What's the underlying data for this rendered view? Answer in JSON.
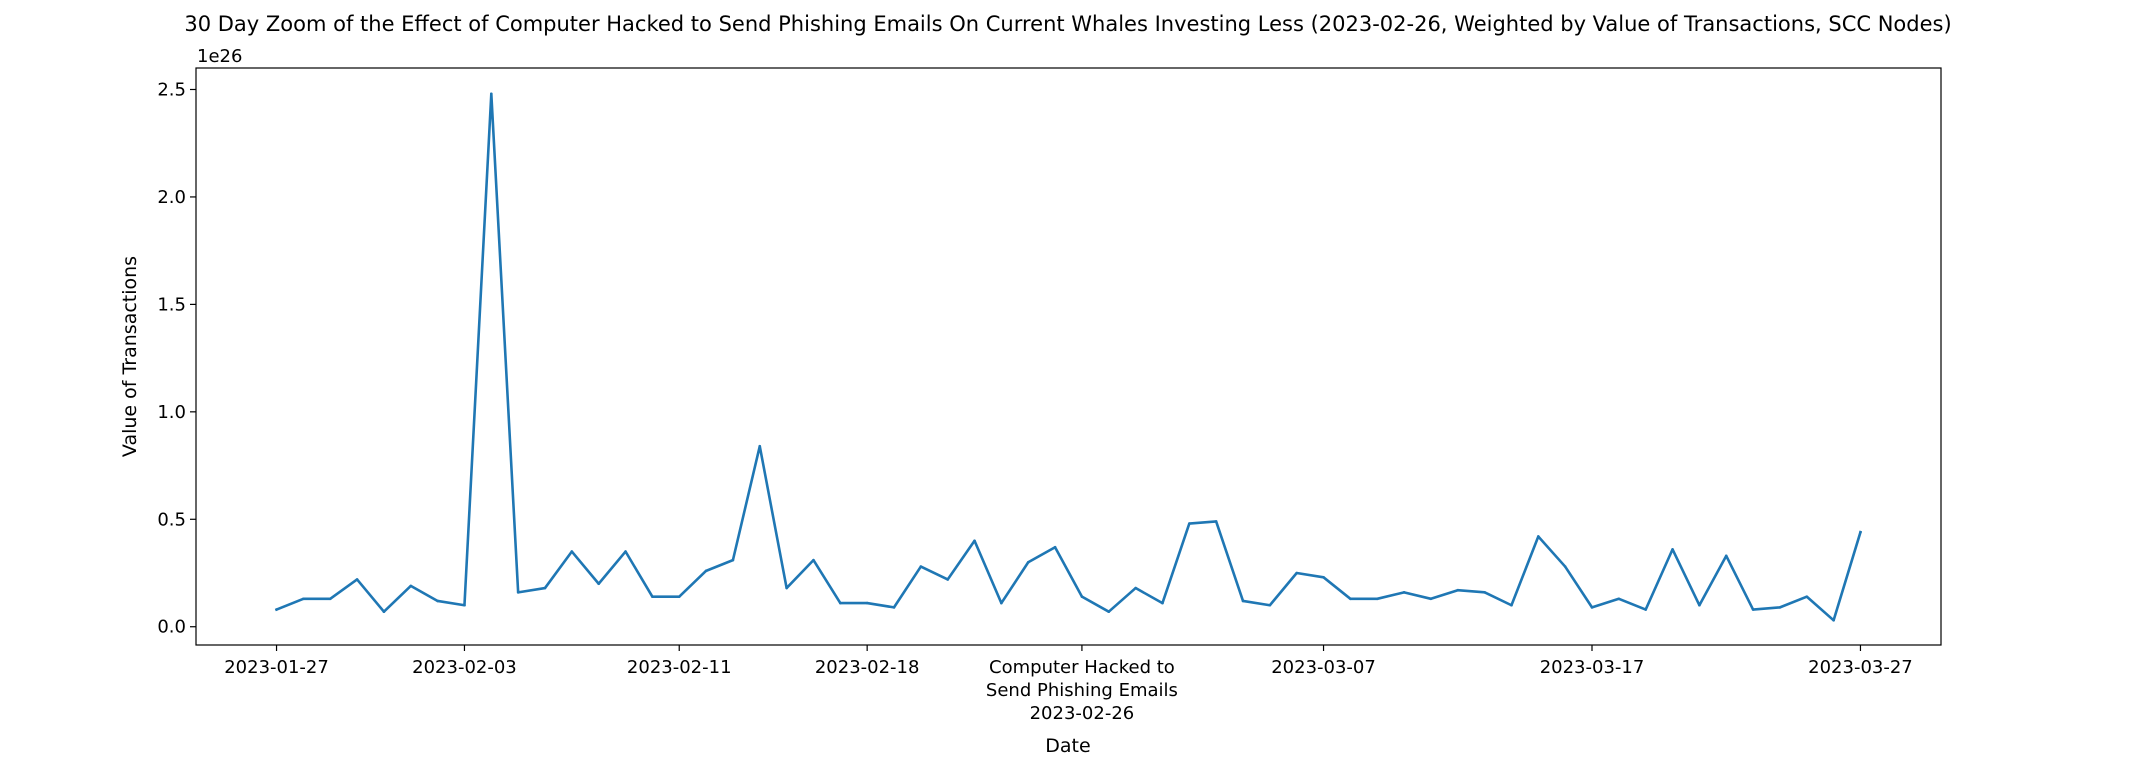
{
  "chart_data": {
    "type": "line",
    "title": "30 Day Zoom of the Effect of Computer Hacked to Send Phishing Emails On Current Whales Investing Less (2023-02-26, Weighted by Value of Transactions, SCC Nodes)",
    "xlabel": "Date",
    "ylabel": "Value of Transactions",
    "y_offset_label": "1e26",
    "y_multiplier": 1e+26,
    "xlim": [
      "2023-01-24",
      "2023-03-30"
    ],
    "ylim": [
      -0.085,
      2.6
    ],
    "yticks": [
      0.0,
      0.5,
      1.0,
      1.5,
      2.0,
      2.5
    ],
    "ytick_labels": [
      "0.0",
      "0.5",
      "1.0",
      "1.5",
      "2.0",
      "2.5"
    ],
    "xticks": [
      "2023-01-27",
      "2023-02-03",
      "2023-02-11",
      "2023-02-18",
      "2023-02-26",
      "2023-03-07",
      "2023-03-17",
      "2023-03-27"
    ],
    "xtick_labels": [
      [
        "2023-01-27"
      ],
      [
        "2023-02-03"
      ],
      [
        "2023-02-11"
      ],
      [
        "2023-02-18"
      ],
      [
        "Computer Hacked to",
        "Send Phishing Emails",
        "2023-02-26"
      ],
      [
        "2023-03-07"
      ],
      [
        "2023-03-17"
      ],
      [
        "2023-03-27"
      ]
    ],
    "grid": false,
    "legend": false,
    "series": [
      {
        "color": "#1f77b4",
        "x": [
          "2023-01-27",
          "2023-01-28",
          "2023-01-29",
          "2023-01-30",
          "2023-01-31",
          "2023-02-01",
          "2023-02-02",
          "2023-02-03",
          "2023-02-04",
          "2023-02-05",
          "2023-02-06",
          "2023-02-07",
          "2023-02-08",
          "2023-02-09",
          "2023-02-10",
          "2023-02-11",
          "2023-02-12",
          "2023-02-13",
          "2023-02-14",
          "2023-02-15",
          "2023-02-16",
          "2023-02-17",
          "2023-02-18",
          "2023-02-19",
          "2023-02-20",
          "2023-02-21",
          "2023-02-22",
          "2023-02-23",
          "2023-02-24",
          "2023-02-25",
          "2023-02-26",
          "2023-02-27",
          "2023-02-28",
          "2023-03-01",
          "2023-03-02",
          "2023-03-03",
          "2023-03-04",
          "2023-03-05",
          "2023-03-06",
          "2023-03-07",
          "2023-03-08",
          "2023-03-09",
          "2023-03-10",
          "2023-03-11",
          "2023-03-12",
          "2023-03-13",
          "2023-03-14",
          "2023-03-15",
          "2023-03-16",
          "2023-03-17",
          "2023-03-18",
          "2023-03-19",
          "2023-03-20",
          "2023-03-21",
          "2023-03-22",
          "2023-03-23",
          "2023-03-24",
          "2023-03-25",
          "2023-03-26",
          "2023-03-27"
        ],
        "y": [
          0.08,
          0.13,
          0.13,
          0.22,
          0.07,
          0.19,
          0.12,
          0.1,
          2.48,
          0.16,
          0.18,
          0.35,
          0.2,
          0.35,
          0.14,
          0.14,
          0.26,
          0.31,
          0.84,
          0.18,
          0.31,
          0.11,
          0.11,
          0.09,
          0.28,
          0.22,
          0.4,
          0.11,
          0.3,
          0.37,
          0.14,
          0.07,
          0.18,
          0.11,
          0.48,
          0.49,
          0.12,
          0.1,
          0.25,
          0.23,
          0.13,
          0.13,
          0.16,
          0.13,
          0.17,
          0.16,
          0.1,
          0.42,
          0.28,
          0.09,
          0.13,
          0.08,
          0.36,
          0.1,
          0.33,
          0.08,
          0.09,
          0.14,
          0.03,
          0.44
        ]
      }
    ]
  }
}
